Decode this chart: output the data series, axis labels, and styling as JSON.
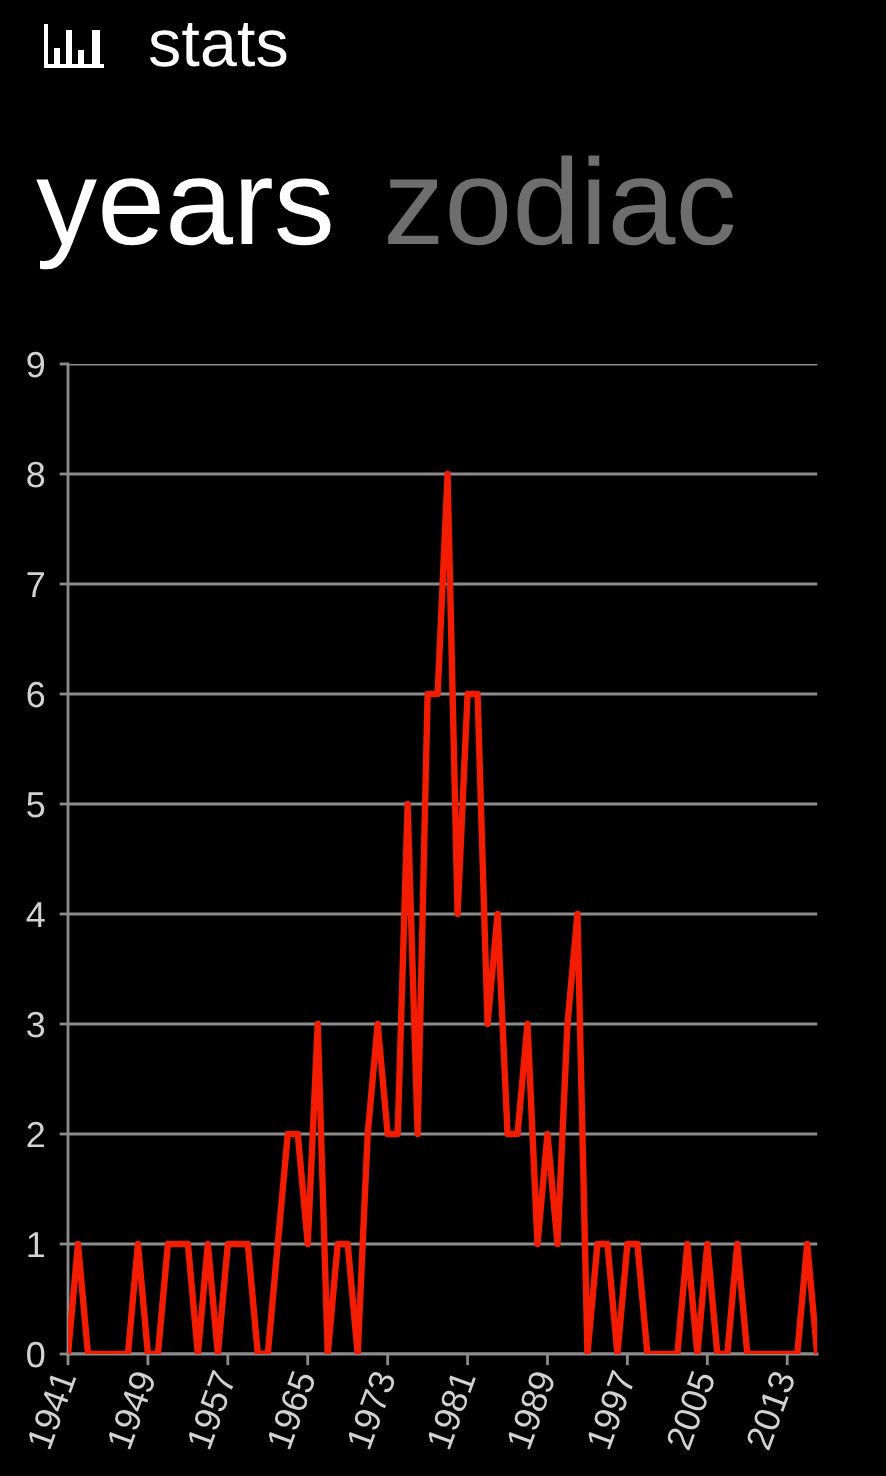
{
  "chart_data": {
    "type": "line",
    "title": "stats",
    "subtitle": "years",
    "annotations": [
      "zodiac"
    ],
    "x": [
      1941,
      1942,
      1943,
      1944,
      1945,
      1946,
      1947,
      1948,
      1949,
      1950,
      1951,
      1952,
      1953,
      1954,
      1955,
      1956,
      1957,
      1958,
      1959,
      1960,
      1961,
      1962,
      1963,
      1964,
      1965,
      1966,
      1967,
      1968,
      1969,
      1970,
      1971,
      1972,
      1973,
      1974,
      1975,
      1976,
      1977,
      1978,
      1979,
      1980,
      1981,
      1982,
      1983,
      1984,
      1985,
      1986,
      1987,
      1988,
      1989,
      1990,
      1991,
      1992,
      1993,
      1994,
      1995,
      1996,
      1997,
      1998,
      1999,
      2000,
      2001,
      2002,
      2003,
      2004,
      2005,
      2006,
      2007,
      2008,
      2009,
      2010,
      2011,
      2012,
      2013,
      2014,
      2015,
      2016
    ],
    "series": [
      {
        "color": "#f21c00",
        "values": [
          0,
          1,
          0,
          0,
          0,
          0,
          0,
          1,
          0,
          0,
          1,
          1,
          1,
          0,
          1,
          0,
          1,
          1,
          1,
          0,
          0,
          1,
          2,
          2,
          1,
          3,
          0,
          1,
          1,
          0,
          2,
          3,
          2,
          2,
          5,
          2,
          6,
          6,
          8,
          4,
          6,
          6,
          3,
          4,
          2,
          2,
          3,
          1,
          2,
          1,
          3,
          4,
          0,
          1,
          1,
          0,
          1,
          1,
          0,
          0,
          0,
          0,
          1,
          0,
          1,
          0,
          0,
          1,
          0,
          0,
          0,
          0,
          0,
          0,
          1,
          0
        ]
      }
    ],
    "xlim": [
      1941,
      2016
    ],
    "xticks": [
      1941,
      1949,
      1957,
      1965,
      1973,
      1981,
      1989,
      1997,
      2005,
      2013
    ],
    "ylim": [
      0,
      9
    ],
    "yticks": [
      0,
      1,
      2,
      3,
      4,
      5,
      6,
      7,
      8,
      9
    ],
    "grid": "y",
    "line_style": "solid"
  }
}
